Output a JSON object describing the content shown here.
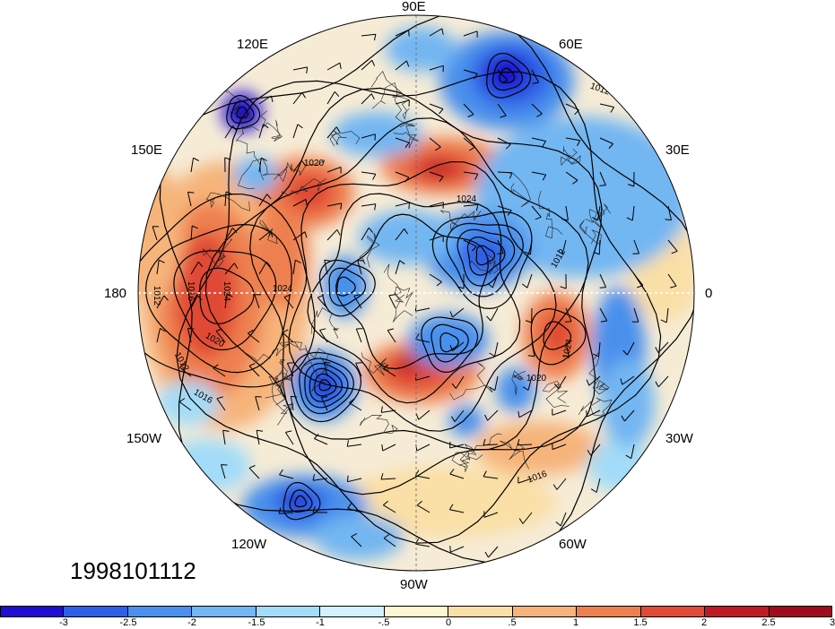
{
  "date_stamp": "1998101112",
  "longitude_labels": [
    "90E",
    "60E",
    "120E",
    "150E",
    "30E",
    "180",
    "0",
    "150W",
    "30W",
    "120W",
    "60W",
    "90W"
  ],
  "contour_labels": [
    "1012",
    "1016",
    "1020",
    "1024"
  ],
  "colorbar": {
    "colors": [
      "#1c0fd2",
      "#2e5fe6",
      "#4a90ec",
      "#72b6f2",
      "#a2dcf8",
      "#d2f2fc",
      "#fdf6d2",
      "#fadfa6",
      "#f6b47a",
      "#ee8050",
      "#e04a36",
      "#c01a26",
      "#a00c1e"
    ],
    "tick_labels": [
      "-3",
      "-2.5",
      "-2",
      "-1.5",
      "-1",
      "-.5",
      "0",
      ".5",
      "1",
      "1.5",
      "2",
      "2.5",
      "3"
    ]
  }
}
